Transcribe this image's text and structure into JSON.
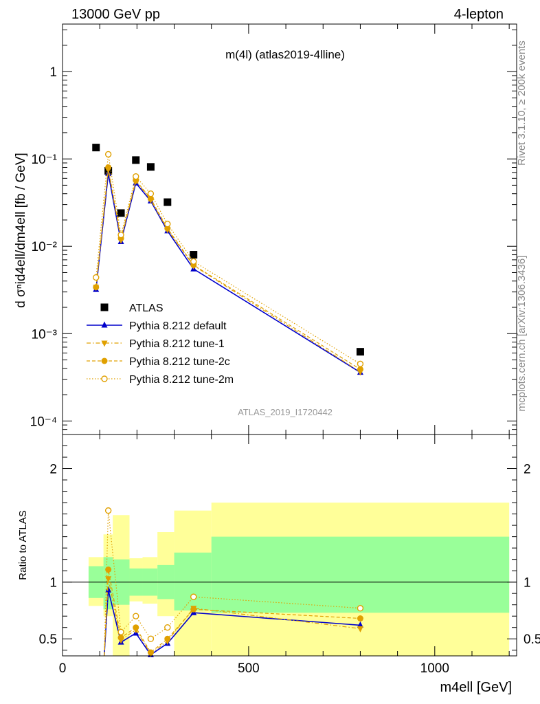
{
  "header": {
    "left": "13000 GeV pp",
    "right": "4-lepton"
  },
  "side_labels": {
    "rivet": "Rivet 3.1.10, ≥ 200k events",
    "mcplots": "mcplots.cern.ch [arXiv:1306.3436]"
  },
  "chart_data": [
    {
      "type": "scatter",
      "panel": "main",
      "title": "m(4l) (atlas2019-4lline)",
      "analysis_label": "ATLAS_2019_I1720442",
      "ylabel": "d σⁿid4ell/dm4ell [fb / GeV]",
      "yscale": "log",
      "ylim": [
        7e-05,
        3.5
      ],
      "xlim": [
        0,
        1220
      ],
      "x_ticks": [
        "0",
        "500",
        "1000"
      ],
      "y_ticks": [
        "10⁻⁴",
        "10⁻³",
        "10⁻²",
        "10⁻¹",
        "1"
      ],
      "legend_position": "middle-left",
      "series": [
        {
          "name": "ATLAS",
          "color": "#000000",
          "marker": "square",
          "x": [
            90,
            123,
            157,
            197,
            237,
            282,
            352,
            800
          ],
          "y": [
            0.135,
            0.073,
            0.024,
            0.097,
            0.081,
            0.032,
            0.008,
            0.00062
          ]
        },
        {
          "name": "Pythia 8.212 default",
          "color": "#0000cc",
          "marker": "triangle-up",
          "line": "solid",
          "x": [
            90,
            123,
            157,
            197,
            237,
            282,
            352,
            800
          ],
          "y": [
            0.0032,
            0.068,
            0.0113,
            0.053,
            0.033,
            0.015,
            0.0055,
            0.00036
          ]
        },
        {
          "name": "Pythia 8.212 tune-1",
          "color": "#e0a000",
          "marker": "triangle-down",
          "line": "dashdot",
          "x": [
            90,
            123,
            157,
            197,
            237,
            282,
            352,
            800
          ],
          "y": [
            0.0034,
            0.076,
            0.0118,
            0.056,
            0.034,
            0.0155,
            0.006,
            0.000365
          ]
        },
        {
          "name": "Pythia 8.212 tune-2c",
          "color": "#e0a000",
          "marker": "circle",
          "line": "dashed",
          "x": [
            90,
            123,
            157,
            197,
            237,
            282,
            352,
            800
          ],
          "y": [
            0.0034,
            0.08,
            0.0123,
            0.057,
            0.035,
            0.016,
            0.0061,
            0.00039
          ]
        },
        {
          "name": "Pythia 8.212 tune-2m",
          "color": "#e0a000",
          "marker": "open-circle",
          "line": "dotted",
          "x": [
            90,
            123,
            157,
            197,
            237,
            282,
            352,
            800
          ],
          "y": [
            0.0044,
            0.113,
            0.0135,
            0.063,
            0.04,
            0.018,
            0.0067,
            0.00045
          ]
        }
      ]
    },
    {
      "type": "scatter",
      "panel": "ratio",
      "ylabel": "Ratio to ATLAS",
      "xlabel": "m4ell [GeV]",
      "ylim": [
        0.35,
        2.3
      ],
      "xlim": [
        0,
        1220
      ],
      "x_ticks": [
        "0",
        "500",
        "1000"
      ],
      "y_ticks": [
        "0.5",
        "1",
        "2"
      ],
      "reference_line": 1,
      "bands": [
        {
          "name": "stat",
          "color": "#99ff99",
          "bins": [
            [
              70,
              110,
              0.86,
              1.14
            ],
            [
              110,
              135,
              0.76,
              1.22
            ],
            [
              135,
              180,
              0.8,
              1.2
            ],
            [
              180,
              215,
              0.88,
              1.12
            ],
            [
              215,
              255,
              0.88,
              1.12
            ],
            [
              255,
              300,
              0.85,
              1.15
            ],
            [
              300,
              400,
              0.75,
              1.26
            ],
            [
              400,
              1200,
              0.73,
              1.4
            ]
          ]
        },
        {
          "name": "total",
          "color": "#ffff99",
          "bins": [
            [
              70,
              110,
              0.79,
              1.22
            ],
            [
              110,
              135,
              0.7,
              1.42
            ],
            [
              135,
              180,
              0.3,
              1.59
            ],
            [
              180,
              215,
              0.83,
              1.21
            ],
            [
              215,
              255,
              0.81,
              1.22
            ],
            [
              255,
              300,
              0.7,
              1.44
            ],
            [
              300,
              400,
              0.3,
              1.63
            ],
            [
              400,
              1200,
              0.3,
              1.7
            ]
          ]
        }
      ],
      "series": [
        {
          "name": "Pythia 8.212 default",
          "color": "#0000cc",
          "marker": "triangle-up",
          "line": "solid",
          "x": [
            112,
            123,
            157,
            197,
            237,
            282,
            352,
            800
          ],
          "y": [
            0.3,
            0.93,
            0.47,
            0.55,
            0.36,
            0.46,
            0.73,
            0.62
          ]
        },
        {
          "name": "Pythia 8.212 tune-1",
          "color": "#e0a000",
          "marker": "triangle-down",
          "line": "dashdot",
          "x": [
            112,
            123,
            157,
            197,
            237,
            282,
            352,
            800
          ],
          "y": [
            0.3,
            1.03,
            0.49,
            0.58,
            0.37,
            0.48,
            0.77,
            0.59
          ]
        },
        {
          "name": "Pythia 8.212 tune-2c",
          "color": "#e0a000",
          "marker": "circle",
          "line": "dashed",
          "x": [
            112,
            123,
            157,
            197,
            237,
            282,
            352,
            800
          ],
          "y": [
            0.3,
            1.11,
            0.51,
            0.6,
            0.38,
            0.5,
            0.76,
            0.68
          ]
        },
        {
          "name": "Pythia 8.212 tune-2m",
          "color": "#e0a000",
          "marker": "open-circle",
          "line": "dotted",
          "x": [
            112,
            123,
            157,
            197,
            237,
            282,
            352,
            800
          ],
          "y": [
            0.3,
            1.63,
            0.56,
            0.7,
            0.5,
            0.6,
            0.87,
            0.77
          ]
        }
      ]
    }
  ]
}
